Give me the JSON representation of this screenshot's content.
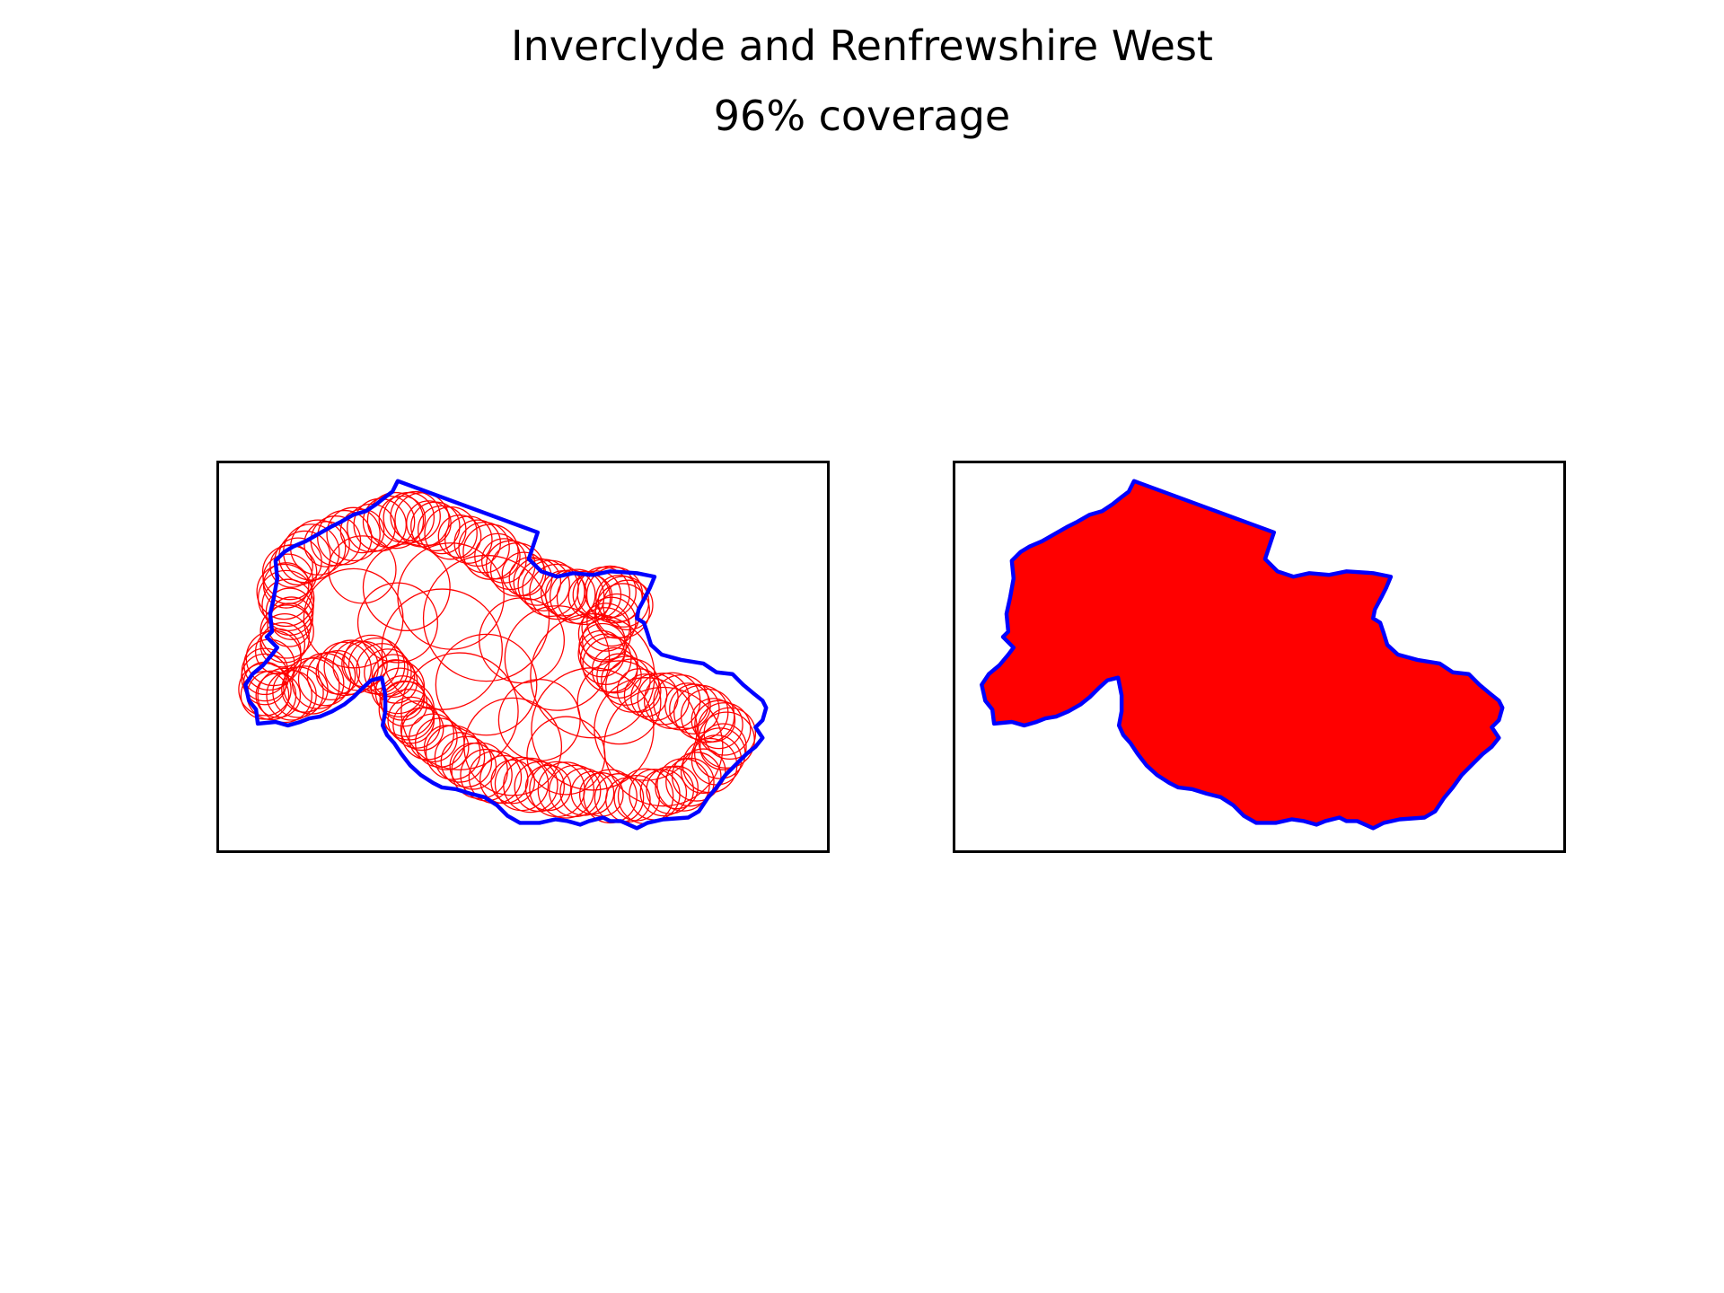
{
  "figure": {
    "title": "Inverclyde and Renfrewshire West",
    "subtitle": "96% coverage"
  },
  "colors": {
    "boundary": "#0000ff",
    "coverage": "#ff0000",
    "frame": "#000000",
    "background": "#ffffff"
  },
  "panels": [
    {
      "id": "circles",
      "style": "outlined circles"
    },
    {
      "id": "union",
      "style": "filled union"
    }
  ]
}
